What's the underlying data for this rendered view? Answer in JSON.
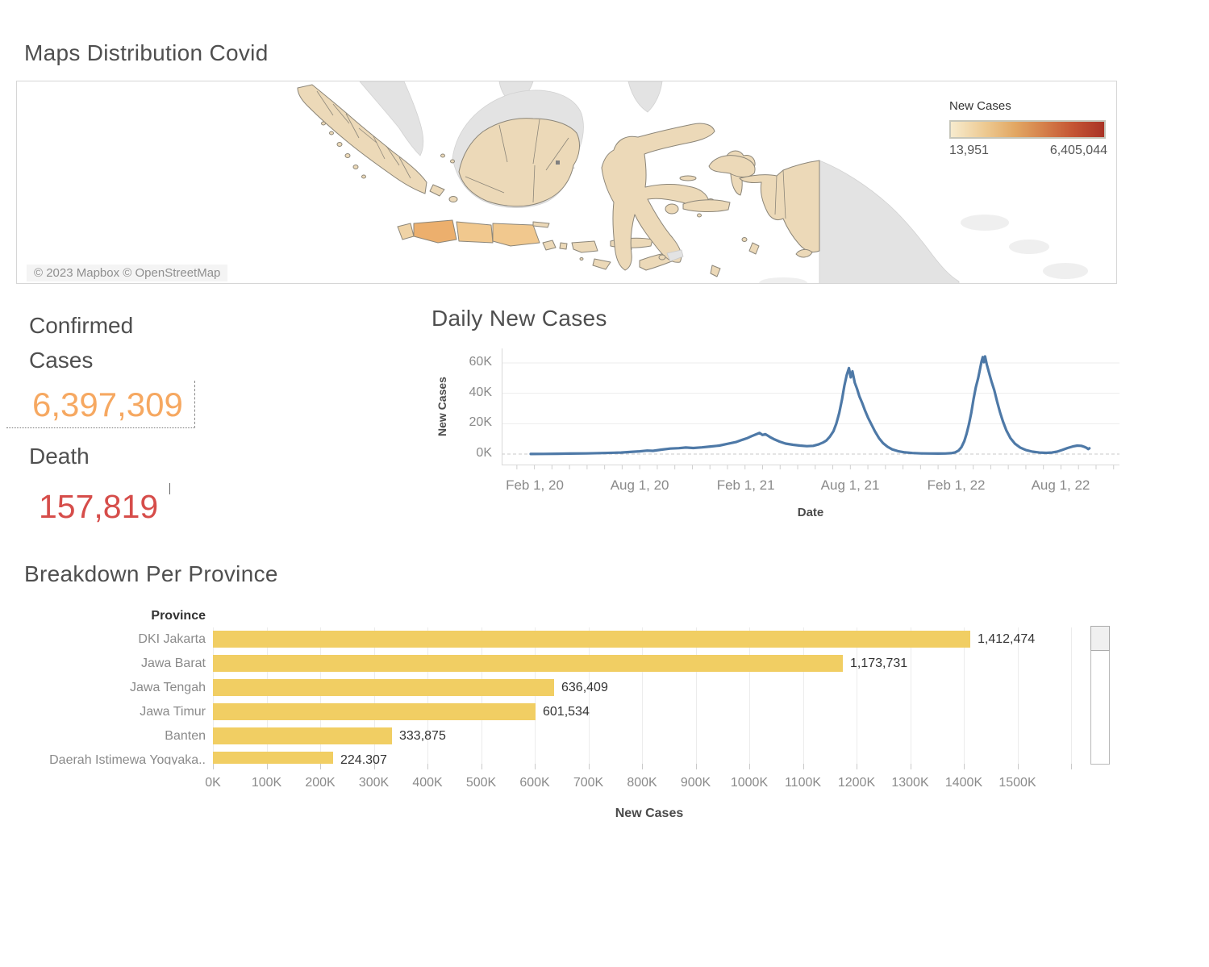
{
  "page": {
    "title": "Maps Distribution Covid"
  },
  "map": {
    "country_label": "Indonesia",
    "attribution": "© 2023 Mapbox © OpenStreetMap",
    "legend": {
      "title": "New Cases",
      "min": "13,951",
      "max": "6,405,044",
      "gradient_start": "#F7EBCE",
      "gradient_end": "#A93325"
    },
    "colors": {
      "indonesia_fill": "#ECD9B8",
      "java_dark": "#ECAF6D",
      "java_mid": "#F1C88E",
      "foreign_land": "#E3E3E3",
      "border": "#8C8679"
    }
  },
  "kpis": {
    "confirmed": {
      "label": "Confirmed Cases",
      "value": "6,397,309",
      "color": "#F6A861"
    },
    "death": {
      "label": "Death",
      "value": "157,819",
      "color": "#D64D4A"
    }
  },
  "chart_data": [
    {
      "id": "daily_new_cases",
      "type": "line",
      "title": "Daily New Cases",
      "xlabel": "Date",
      "ylabel": "New Cases",
      "ylim": [
        0,
        64500
      ],
      "grid": true,
      "line_color": "#4E79A7",
      "y_ticks": [
        {
          "label": "60K",
          "value": 60000
        },
        {
          "label": "40K",
          "value": 40000
        },
        {
          "label": "20K",
          "value": 20000
        },
        {
          "label": "0K",
          "value": 0
        }
      ],
      "x_ticks": [
        {
          "label": "Feb 1, 20",
          "day": 0
        },
        {
          "label": "Aug 1, 20",
          "day": 182
        },
        {
          "label": "Feb 1, 21",
          "day": 366
        },
        {
          "label": "Aug 1, 21",
          "day": 547
        },
        {
          "label": "Feb 1, 22",
          "day": 731
        },
        {
          "label": "Aug 1, 22",
          "day": 912
        }
      ],
      "series": [
        {
          "name": "New Cases",
          "points": [
            [
              -7,
              50
            ],
            [
              15,
              120
            ],
            [
              40,
              200
            ],
            [
              60,
              310
            ],
            [
              90,
              450
            ],
            [
              120,
              700
            ],
            [
              150,
              1000
            ],
            [
              165,
              1400
            ],
            [
              182,
              1800
            ],
            [
              195,
              2300
            ],
            [
              205,
              2100
            ],
            [
              220,
              2900
            ],
            [
              235,
              3600
            ],
            [
              250,
              3900
            ],
            [
              262,
              4300
            ],
            [
              275,
              4000
            ],
            [
              290,
              4400
            ],
            [
              305,
              5000
            ],
            [
              320,
              5600
            ],
            [
              335,
              6800
            ],
            [
              350,
              8000
            ],
            [
              360,
              9400
            ],
            [
              368,
              10400
            ],
            [
              376,
              11800
            ],
            [
              384,
              13000
            ],
            [
              390,
              13900
            ],
            [
              395,
              12600
            ],
            [
              400,
              13100
            ],
            [
              408,
              11200
            ],
            [
              416,
              9600
            ],
            [
              425,
              8200
            ],
            [
              435,
              6900
            ],
            [
              448,
              6100
            ],
            [
              460,
              5600
            ],
            [
              472,
              5200
            ],
            [
              483,
              5400
            ],
            [
              492,
              6300
            ],
            [
              500,
              7600
            ],
            [
              506,
              9000
            ],
            [
              512,
              11500
            ],
            [
              518,
              15000
            ],
            [
              523,
              20000
            ],
            [
              528,
              27000
            ],
            [
              533,
              36000
            ],
            [
              537,
              45000
            ],
            [
              541,
              52000
            ],
            [
              545,
              56600
            ],
            [
              548,
              50500
            ],
            [
              551,
              54500
            ],
            [
              555,
              47000
            ],
            [
              559,
              43000
            ],
            [
              563,
              38000
            ],
            [
              568,
              33500
            ],
            [
              573,
              28500
            ],
            [
              578,
              24000
            ],
            [
              584,
              19500
            ],
            [
              590,
              15000
            ],
            [
              597,
              10500
            ],
            [
              604,
              7200
            ],
            [
              612,
              4800
            ],
            [
              620,
              3100
            ],
            [
              630,
              1900
            ],
            [
              642,
              1100
            ],
            [
              655,
              700
            ],
            [
              670,
              450
            ],
            [
              685,
              350
            ],
            [
              700,
              300
            ],
            [
              712,
              350
            ],
            [
              722,
              600
            ],
            [
              729,
              1100
            ],
            [
              735,
              2300
            ],
            [
              740,
              4500
            ],
            [
              745,
              8500
            ],
            [
              749,
              13500
            ],
            [
              753,
              19500
            ],
            [
              757,
              27000
            ],
            [
              761,
              36000
            ],
            [
              765,
              44000
            ],
            [
              769,
              50000
            ],
            [
              772,
              55500
            ],
            [
              775,
              61000
            ],
            [
              777,
              63800
            ],
            [
              779,
              60500
            ],
            [
              781,
              64300
            ],
            [
              784,
              59000
            ],
            [
              788,
              53500
            ],
            [
              792,
              48000
            ],
            [
              797,
              42000
            ],
            [
              802,
              34500
            ],
            [
              807,
              27500
            ],
            [
              812,
              21500
            ],
            [
              818,
              15500
            ],
            [
              825,
              10500
            ],
            [
              833,
              6800
            ],
            [
              842,
              4300
            ],
            [
              852,
              2600
            ],
            [
              863,
              1600
            ],
            [
              875,
              1000
            ],
            [
              887,
              800
            ],
            [
              897,
              1000
            ],
            [
              906,
              1600
            ],
            [
              915,
              2700
            ],
            [
              924,
              4000
            ],
            [
              933,
              5000
            ],
            [
              941,
              5600
            ],
            [
              948,
              5400
            ],
            [
              953,
              4800
            ],
            [
              957,
              4100
            ],
            [
              960,
              3300
            ],
            [
              962,
              3800
            ]
          ]
        }
      ]
    },
    {
      "id": "breakdown_per_province",
      "type": "bar",
      "title": "Breakdown Per Province",
      "xlabel": "New Cases",
      "col_header": "Province",
      "bar_color": "#F1CE63",
      "xlim": [
        0,
        1627000
      ],
      "categories": [
        "DKI Jakarta",
        "Jawa Barat",
        "Jawa Tengah",
        "Jawa Timur",
        "Banten",
        "Daerah Istimewa Yogyaka.."
      ],
      "values": [
        1412474,
        1173731,
        636409,
        601534,
        333875,
        224307
      ],
      "value_labels": [
        "1,412,474",
        "1,173,731",
        "636,409",
        "601,534",
        "333,875",
        "224,307"
      ],
      "x_ticks": [
        "0K",
        "100K",
        "200K",
        "300K",
        "400K",
        "500K",
        "600K",
        "700K",
        "800K",
        "900K",
        "1000K",
        "1100K",
        "1200K",
        "1300K",
        "1400K",
        "1500K"
      ]
    }
  ]
}
